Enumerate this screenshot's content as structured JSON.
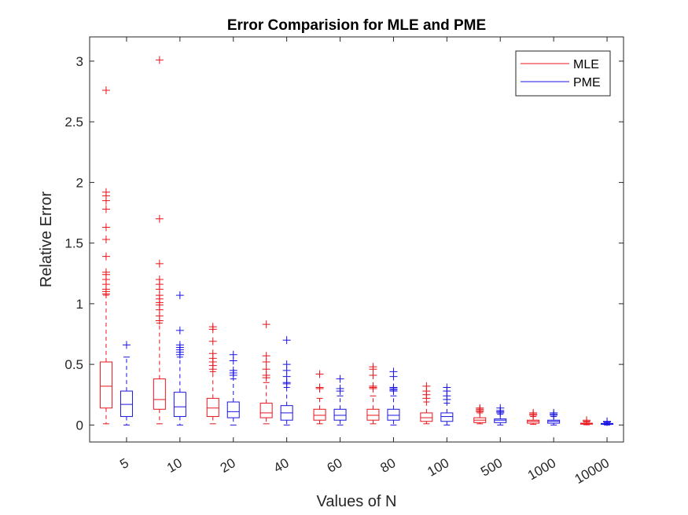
{
  "chart_data": {
    "type": "boxplot",
    "title": "Error Comparision for MLE and PME",
    "xlabel": "Values of N",
    "ylabel": "Relative Error",
    "categories": [
      "5",
      "10",
      "20",
      "40",
      "60",
      "80",
      "100",
      "500",
      "1000",
      "10000"
    ],
    "y_ticks": [
      "0",
      "0.5",
      "1",
      "1.5",
      "2",
      "2.5",
      "3"
    ],
    "ylim": [
      -0.14,
      3.2
    ],
    "legend_position": "top-right",
    "grid": false,
    "series": [
      {
        "name": "MLE",
        "color": "#e8141a",
        "boxes": [
          {
            "min": 0.01,
            "q1": 0.14,
            "median": 0.32,
            "q3": 0.52,
            "max": 1.07,
            "outliers": [
              1.08,
              1.1,
              1.12,
              1.16,
              1.2,
              1.24,
              1.26,
              1.39,
              1.53,
              1.63,
              1.78,
              1.85,
              1.89,
              1.92,
              2.76
            ]
          },
          {
            "min": 0.01,
            "q1": 0.13,
            "median": 0.21,
            "q3": 0.38,
            "max": 0.84,
            "outliers": [
              0.86,
              0.9,
              0.95,
              0.99,
              1.01,
              1.04,
              1.07,
              1.12,
              1.16,
              1.2,
              1.33,
              1.7,
              3.01
            ]
          },
          {
            "min": 0.01,
            "q1": 0.07,
            "median": 0.14,
            "q3": 0.22,
            "max": 0.44,
            "outliers": [
              0.46,
              0.49,
              0.52,
              0.55,
              0.59,
              0.69,
              0.79,
              0.81
            ]
          },
          {
            "min": 0.01,
            "q1": 0.06,
            "median": 0.1,
            "q3": 0.18,
            "max": 0.35,
            "outliers": [
              0.39,
              0.41,
              0.46,
              0.52,
              0.57,
              0.83
            ]
          },
          {
            "min": 0.01,
            "q1": 0.04,
            "median": 0.08,
            "q3": 0.13,
            "max": 0.22,
            "outliers": [
              0.3,
              0.31,
              0.42
            ]
          },
          {
            "min": 0.01,
            "q1": 0.04,
            "median": 0.08,
            "q3": 0.13,
            "max": 0.24,
            "outliers": [
              0.3,
              0.31,
              0.32,
              0.41,
              0.46,
              0.48
            ]
          },
          {
            "min": 0.01,
            "q1": 0.03,
            "median": 0.06,
            "q3": 0.1,
            "max": 0.19,
            "outliers": [
              0.22,
              0.25,
              0.28,
              0.32
            ]
          },
          {
            "min": 0.01,
            "q1": 0.02,
            "median": 0.04,
            "q3": 0.06,
            "max": 0.1,
            "outliers": [
              0.11,
              0.12,
              0.13,
              0.14
            ]
          },
          {
            "min": 0.005,
            "q1": 0.015,
            "median": 0.03,
            "q3": 0.04,
            "max": 0.07,
            "outliers": [
              0.08,
              0.09,
              0.1
            ]
          },
          {
            "min": 0.002,
            "q1": 0.007,
            "median": 0.01,
            "q3": 0.015,
            "max": 0.025,
            "outliers": [
              0.03,
              0.04
            ]
          }
        ]
      },
      {
        "name": "PME",
        "color": "#1a14e0",
        "boxes": [
          {
            "min": 0.0,
            "q1": 0.07,
            "median": 0.17,
            "q3": 0.28,
            "max": 0.56,
            "outliers": [
              0.66
            ]
          },
          {
            "min": 0.0,
            "q1": 0.07,
            "median": 0.15,
            "q3": 0.27,
            "max": 0.56,
            "outliers": [
              0.58,
              0.6,
              0.62,
              0.64,
              0.66,
              0.78,
              1.07
            ]
          },
          {
            "min": 0.0,
            "q1": 0.06,
            "median": 0.11,
            "q3": 0.19,
            "max": 0.38,
            "outliers": [
              0.41,
              0.43,
              0.45,
              0.53,
              0.58
            ]
          },
          {
            "min": 0.0,
            "q1": 0.04,
            "median": 0.1,
            "q3": 0.16,
            "max": 0.31,
            "outliers": [
              0.34,
              0.35,
              0.4,
              0.45,
              0.5,
              0.7
            ]
          },
          {
            "min": 0.0,
            "q1": 0.04,
            "median": 0.08,
            "q3": 0.13,
            "max": 0.24,
            "outliers": [
              0.28,
              0.3,
              0.38
            ]
          },
          {
            "min": 0.0,
            "q1": 0.04,
            "median": 0.08,
            "q3": 0.13,
            "max": 0.24,
            "outliers": [
              0.28,
              0.29,
              0.3,
              0.31,
              0.4,
              0.44
            ]
          },
          {
            "min": 0.0,
            "q1": 0.03,
            "median": 0.07,
            "q3": 0.1,
            "max": 0.18,
            "outliers": [
              0.21,
              0.24,
              0.28,
              0.31
            ]
          },
          {
            "min": 0.0,
            "q1": 0.02,
            "median": 0.04,
            "q3": 0.05,
            "max": 0.09,
            "outliers": [
              0.1,
              0.11,
              0.12,
              0.14
            ]
          },
          {
            "min": 0.0,
            "q1": 0.015,
            "median": 0.03,
            "q3": 0.04,
            "max": 0.07,
            "outliers": [
              0.08,
              0.09,
              0.1
            ]
          },
          {
            "min": 0.0,
            "q1": 0.005,
            "median": 0.01,
            "q3": 0.013,
            "max": 0.02,
            "outliers": [
              0.025,
              0.03
            ]
          }
        ]
      }
    ]
  }
}
